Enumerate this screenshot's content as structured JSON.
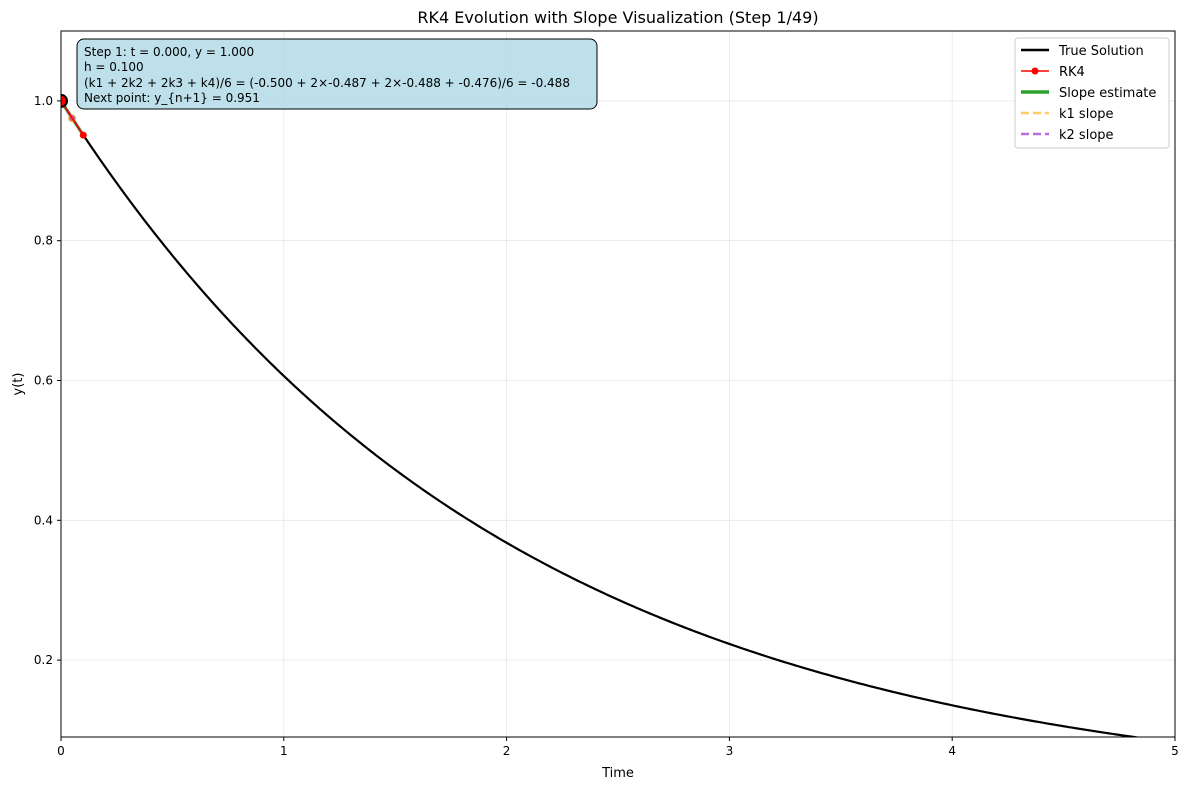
{
  "chart_data": {
    "type": "line",
    "title": "RK4 Evolution with Slope Visualization (Step 1/49)",
    "xlabel": "Time",
    "ylabel": "y(t)",
    "xlim": [
      0,
      5
    ],
    "ylim": [
      0.09,
      1.1
    ],
    "xticks": [
      0,
      1,
      2,
      3,
      4,
      5
    ],
    "yticks": [
      0.2,
      0.4,
      0.6,
      0.8,
      1.0
    ],
    "xtick_labels": [
      "0",
      "1",
      "2",
      "3",
      "4",
      "5"
    ],
    "ytick_labels": [
      "0.2",
      "0.4",
      "0.6",
      "0.8",
      "1.0"
    ],
    "grid": true,
    "legend_position": "top-right",
    "series": [
      {
        "name": "True Solution",
        "kind": "curve",
        "function": "exp(-0.5 t)",
        "x_range": [
          0,
          5
        ],
        "color": "#000000"
      },
      {
        "name": "RK4",
        "kind": "points",
        "x": [
          0,
          0.1
        ],
        "y": [
          1.0,
          0.951
        ],
        "color": "#ff0000"
      },
      {
        "name": "Slope estimate",
        "kind": "segment",
        "x": [
          0,
          0.1
        ],
        "y": [
          1.0,
          0.951
        ],
        "color": "#2ca02c"
      },
      {
        "name": "k1 slope",
        "kind": "segment",
        "x": [
          0,
          0.05
        ],
        "y": [
          1.0,
          0.975
        ],
        "color": "#ffa500"
      },
      {
        "name": "k2 slope",
        "kind": "segment",
        "x": [
          0,
          0.05
        ],
        "y": [
          1.0,
          0.9756
        ],
        "color": "#9932cc"
      }
    ],
    "current_point": {
      "x": 0,
      "y": 1.0
    },
    "annotation": [
      "Step 1: t = 0.000, y = 1.000",
      "h = 0.100",
      "(k1 + 2k2 + 2k3 + k4)/6 = (-0.500 + 2×-0.487 + 2×-0.488 + -0.476)/6 = -0.488",
      "Next point: y_{n+1} = 0.951"
    ]
  }
}
